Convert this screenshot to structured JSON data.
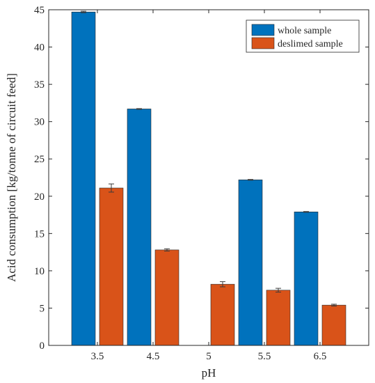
{
  "chart_data": {
    "type": "bar",
    "xlabel": "pH",
    "ylabel": "Acid consumption [kg/tonne of circuit feed]",
    "categories": [
      "3.5",
      "4.5",
      "5",
      "5.5",
      "6.5"
    ],
    "ylim": [
      0,
      45
    ],
    "yticks": [
      "0",
      "5",
      "10",
      "15",
      "20",
      "25",
      "30",
      "35",
      "40",
      "45"
    ],
    "grid": false,
    "legend_position": "top-right",
    "series": [
      {
        "name": "whole sample",
        "color": "#0072BD",
        "values": [
          44.7,
          31.7,
          null,
          22.2,
          17.9
        ],
        "errors": [
          0.1,
          0.05,
          null,
          0.05,
          0.05
        ]
      },
      {
        "name": "deslimed sample",
        "color": "#D95319",
        "values": [
          21.1,
          12.8,
          8.2,
          7.4,
          5.4
        ],
        "errors": [
          0.55,
          0.15,
          0.35,
          0.25,
          0.12
        ]
      }
    ]
  }
}
